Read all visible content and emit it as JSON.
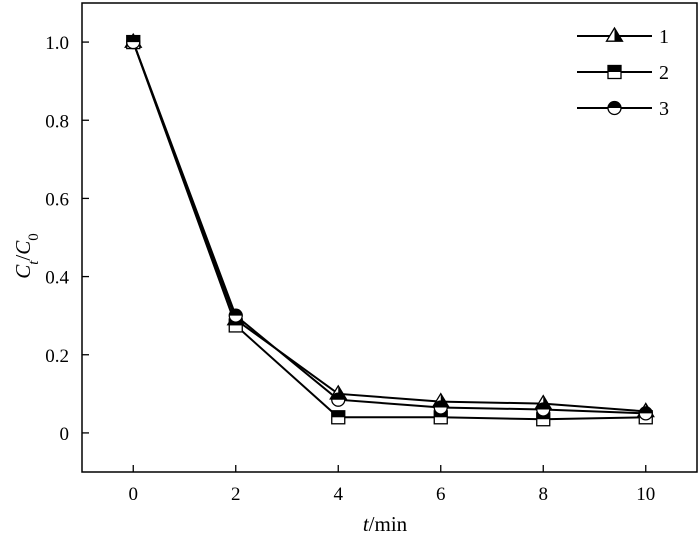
{
  "chart_data": {
    "type": "line",
    "x": [
      0,
      2,
      4,
      6,
      8,
      10
    ],
    "xticks": [
      "0",
      "2",
      "4",
      "6",
      "8",
      "10"
    ],
    "yticks": [
      "0",
      "0.2",
      "0.4",
      "0.6",
      "0.8",
      "1.0"
    ],
    "xlim": [
      -1,
      11
    ],
    "ylim": [
      -0.1,
      1.1
    ],
    "xlabel": {
      "var": "t",
      "unit": "/min"
    },
    "ylabel": {
      "c1": "C",
      "s1": "t",
      "slash": "/",
      "c2": "C",
      "s2": "0"
    },
    "legend_position": "top-right",
    "grid": false,
    "series": [
      {
        "name": "1",
        "marker": "triangle",
        "values": [
          1.0,
          0.29,
          0.1,
          0.08,
          0.075,
          0.055
        ]
      },
      {
        "name": "2",
        "marker": "square",
        "values": [
          1.0,
          0.275,
          0.04,
          0.04,
          0.035,
          0.04
        ]
      },
      {
        "name": "3",
        "marker": "circle",
        "values": [
          1.0,
          0.3,
          0.085,
          0.065,
          0.06,
          0.05
        ]
      }
    ],
    "colors": {
      "line": "#000000",
      "fill": "#000000",
      "background": "#ffffff"
    }
  }
}
